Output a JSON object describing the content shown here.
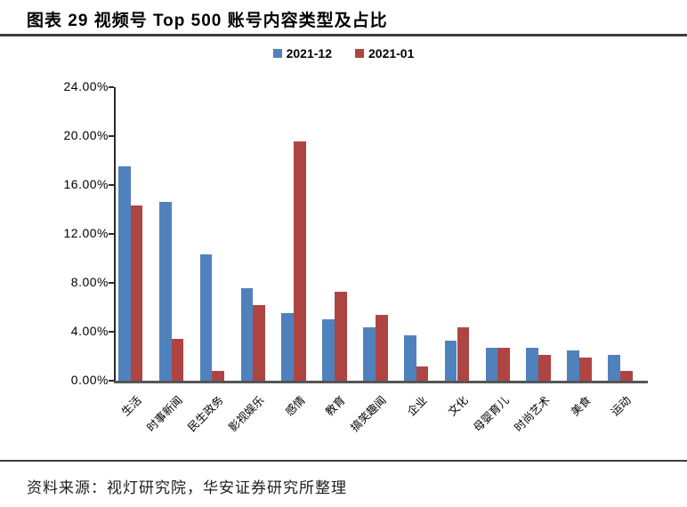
{
  "header": {
    "title": "图表 29 视频号 Top 500 账号内容类型及占比"
  },
  "legend": {
    "items": [
      {
        "label": "2021-12",
        "color": "#4F81BD"
      },
      {
        "label": "2021-01",
        "color": "#AE4543"
      }
    ]
  },
  "chart_data": {
    "type": "bar",
    "title": "视频号 Top 500 账号内容类型及占比",
    "categories": [
      "生活",
      "时事新闻",
      "民生政务",
      "影视娱乐",
      "感情",
      "教育",
      "搞笑趣闻",
      "企业",
      "文化",
      "母婴育儿",
      "时尚艺术",
      "美食",
      "运动"
    ],
    "series": [
      {
        "name": "2021-12",
        "color": "#4F81BD",
        "values": [
          17.5,
          14.6,
          10.3,
          7.6,
          5.5,
          5.0,
          4.4,
          3.7,
          3.3,
          2.7,
          2.7,
          2.5,
          2.1
        ]
      },
      {
        "name": "2021-01",
        "color": "#AE4543",
        "values": [
          14.3,
          3.4,
          0.8,
          6.2,
          19.6,
          7.3,
          5.4,
          1.2,
          4.4,
          2.7,
          2.1,
          1.9,
          0.8
        ]
      }
    ],
    "xlabel": "",
    "ylabel": "",
    "ylim": [
      0,
      24
    ],
    "ytick_step": 4,
    "ytick_labels_top_to_bottom": [
      "24.00%",
      "20.00%",
      "16.00%",
      "12.00%",
      "8.00%",
      "4.00%",
      "0.00%"
    ],
    "grid": false,
    "legend_position": "top-center"
  },
  "footer": {
    "source": "资料来源：视灯研究院，华安证券研究所整理"
  }
}
